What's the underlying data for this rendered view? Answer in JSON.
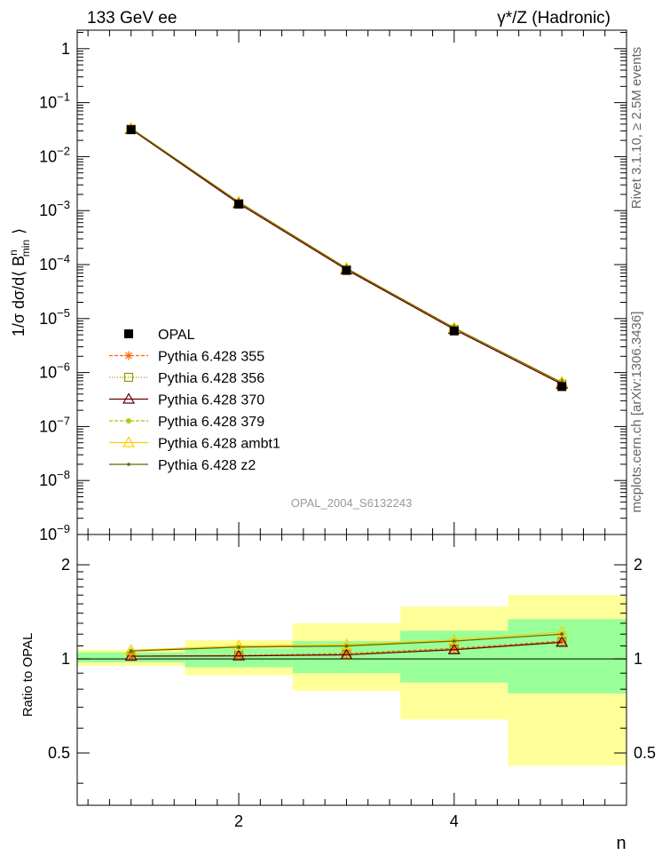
{
  "header": {
    "left": "133 GeV ee",
    "right": "γ*/Z (Hadronic)"
  },
  "side_labels": {
    "rivet": "Rivet 3.1.10, ≥ 2.5M events",
    "mcplots": "mcplots.cern.ch [arXiv:1306.3436]"
  },
  "watermark": "OPAL_2004_S6132243",
  "colors": {
    "data": "#000000",
    "band_inner": "#99ff99",
    "band_outer": "#ffff99",
    "p355": "#ff6600",
    "p356": "#999900",
    "p370": "#660000",
    "p379": "#99cc00",
    "ambt1": "#ffcc00",
    "z2": "#666600"
  },
  "chart_data": [
    {
      "type": "line",
      "ylabel": "1/σ dσ/d⟨ B",
      "ylabel_sub": "min",
      "ylabel_sup": "n",
      "ylabel_end": "⟩",
      "xlabel": "n",
      "yscale": "log",
      "xlim": [
        0.5,
        5.6
      ],
      "ylim": [
        1e-09,
        2.2
      ],
      "y_ticks": [
        {
          "v": 1,
          "label": "1"
        },
        {
          "v": 0.1,
          "base": "10",
          "exp": "−1"
        },
        {
          "v": 0.01,
          "base": "10",
          "exp": "−2"
        },
        {
          "v": 0.001,
          "base": "10",
          "exp": "−3"
        },
        {
          "v": 0.0001,
          "base": "10",
          "exp": "−4"
        },
        {
          "v": 1e-05,
          "base": "10",
          "exp": "−5"
        },
        {
          "v": 1e-06,
          "base": "10",
          "exp": "−6"
        },
        {
          "v": 1e-07,
          "base": "10",
          "exp": "−7"
        },
        {
          "v": 1e-08,
          "base": "10",
          "exp": "−8"
        },
        {
          "v": 1e-09,
          "base": "10",
          "exp": "−9"
        }
      ],
      "x": [
        1,
        2,
        3,
        4,
        5
      ],
      "data": {
        "name": "OPAL",
        "values": [
          0.0315,
          0.00132,
          7.8e-05,
          5.9e-06,
          5.5e-07
        ]
      },
      "series": [
        {
          "name": "Pythia 6.428 355",
          "colorKey": "p355",
          "marker": "star",
          "dash": "4,2",
          "values": [
            0.0322,
            0.00135,
            8.08e-05,
            6.3e-06,
            6.1e-07
          ]
        },
        {
          "name": "Pythia 6.428 356",
          "colorKey": "p356",
          "marker": "square-open",
          "dash": "1,2",
          "values": [
            0.0322,
            0.00135,
            8.06e-05,
            6.3e-06,
            6.1e-07
          ]
        },
        {
          "name": "Pythia 6.428 370",
          "colorKey": "p370",
          "marker": "triangle-open",
          "dash": "",
          "values": [
            0.0322,
            0.00135,
            8.06e-05,
            6.3e-06,
            6.1e-07
          ]
        },
        {
          "name": "Pythia 6.428 379",
          "colorKey": "p379",
          "marker": "star-small",
          "dash": "4,2",
          "values": [
            0.0335,
            0.00144,
            8.55e-05,
            6.7e-06,
            6.6e-07
          ]
        },
        {
          "name": "Pythia 6.428 ambt1",
          "colorKey": "ambt1",
          "marker": "triangle-open",
          "dash": "",
          "values": [
            0.0336,
            0.00145,
            8.58e-05,
            6.7e-06,
            6.6e-07
          ]
        },
        {
          "name": "Pythia 6.428 z2",
          "colorKey": "z2",
          "marker": "dot",
          "dash": "",
          "values": [
            0.0334,
            0.00144,
            8.54e-05,
            6.7e-06,
            6.5e-07
          ]
        }
      ]
    },
    {
      "type": "line",
      "ylabel": "Ratio to OPAL",
      "xlabel": "n",
      "yscale": "log",
      "xlim": [
        0.5,
        5.6
      ],
      "ylim": [
        0.34,
        2.5
      ],
      "x_ticks": [
        {
          "v": 2,
          "label": "2"
        },
        {
          "v": 4,
          "label": "4"
        }
      ],
      "y_ticks": [
        {
          "v": 0.5,
          "label": "0.5"
        },
        {
          "v": 1,
          "label": "1"
        },
        {
          "v": 2,
          "label": "2"
        }
      ],
      "bins": [
        {
          "lo": 0.5,
          "hi": 1.5,
          "inner": [
            0.975,
            1.05
          ],
          "outer": [
            0.95,
            1.07
          ]
        },
        {
          "lo": 1.5,
          "hi": 2.5,
          "inner": [
            0.94,
            1.08
          ],
          "outer": [
            0.885,
            1.15
          ]
        },
        {
          "lo": 2.5,
          "hi": 3.5,
          "inner": [
            0.9,
            1.14
          ],
          "outer": [
            0.79,
            1.3
          ]
        },
        {
          "lo": 3.5,
          "hi": 4.5,
          "inner": [
            0.84,
            1.23
          ],
          "outer": [
            0.64,
            1.47
          ]
        },
        {
          "lo": 4.5,
          "hi": 5.6,
          "inner": [
            0.775,
            1.34
          ],
          "outer": [
            0.455,
            1.6
          ]
        }
      ],
      "x": [
        1,
        2,
        3,
        4,
        5
      ],
      "series": [
        {
          "name": "Pythia 6.428 355",
          "colorKey": "p355",
          "marker": "star",
          "dash": "4,2",
          "values": [
            1.02,
            1.025,
            1.04,
            1.08,
            1.14
          ]
        },
        {
          "name": "Pythia 6.428 356",
          "colorKey": "p356",
          "marker": "square-open",
          "dash": "1,2",
          "values": [
            1.02,
            1.025,
            1.035,
            1.075,
            1.135
          ]
        },
        {
          "name": "Pythia 6.428 370",
          "colorKey": "p370",
          "marker": "triangle-open",
          "dash": "",
          "values": [
            1.02,
            1.022,
            1.03,
            1.07,
            1.13
          ]
        },
        {
          "name": "Pythia 6.428 379",
          "colorKey": "p379",
          "marker": "star-small",
          "dash": "4,2",
          "values": [
            1.06,
            1.09,
            1.1,
            1.14,
            1.2
          ]
        },
        {
          "name": "Pythia 6.428 ambt1",
          "colorKey": "ambt1",
          "marker": "triangle-open",
          "dash": "",
          "values": [
            1.065,
            1.1,
            1.11,
            1.15,
            1.22
          ]
        },
        {
          "name": "Pythia 6.428 z2",
          "colorKey": "z2",
          "marker": "dot",
          "dash": "",
          "values": [
            1.06,
            1.09,
            1.1,
            1.14,
            1.2
          ]
        }
      ]
    }
  ]
}
